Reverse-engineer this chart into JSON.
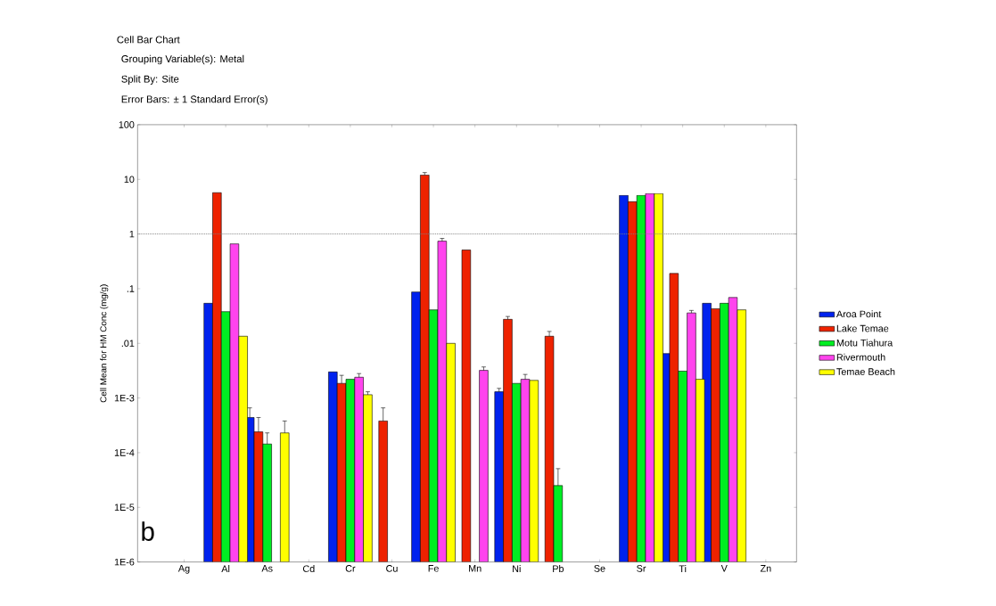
{
  "chart_data": {
    "type": "bar",
    "title": "Cell Bar Chart",
    "annotations": [
      "Grouping Variable(s): Metal",
      "Split By: Site",
      "Error Bars: ± 1 Standard Error(s)",
      "b"
    ],
    "ylabel": "Cell Mean for HM Conc (mg/g)",
    "categories": [
      "Ag",
      "Al",
      "As",
      "Cd",
      "Cr",
      "Cu",
      "Fe",
      "Mn",
      "Ni",
      "Pb",
      "Se",
      "Sr",
      "Ti",
      "V",
      "Zn"
    ],
    "log": true,
    "ylim": [
      1e-06,
      100
    ],
    "yticks": [
      100,
      10,
      1,
      {
        "value": 0.1,
        "label": ".1"
      },
      {
        "value": 0.01,
        "label": ".01"
      },
      {
        "value": 0.001,
        "label": "1E-3"
      },
      {
        "value": 0.0001,
        "label": "1E-4"
      },
      {
        "value": 1e-05,
        "label": "1E-5"
      },
      {
        "value": 1e-06,
        "label": "1E-6"
      }
    ],
    "legend": "right",
    "ref_lines": [
      {
        "axis": "y",
        "value": 1,
        "color": "#808080",
        "line_style": "dotted"
      }
    ],
    "series": [
      {
        "name": "Aroa Point",
        "color": "#0022ee",
        "values": [
          null,
          0.054,
          0.00044,
          null,
          0.003,
          null,
          0.087,
          null,
          0.0013,
          null,
          null,
          5.1,
          0.0065,
          0.054,
          null
        ],
        "errors": [
          null,
          null,
          [
            0.00044,
            0.00066
          ],
          null,
          null,
          null,
          null,
          null,
          [
            0.0013,
            0.0015
          ],
          null,
          null,
          null,
          null,
          null,
          null
        ]
      },
      {
        "name": "Lake Temae",
        "color": "#ee2200",
        "values": [
          null,
          5.7,
          0.00024,
          null,
          0.00185,
          0.00038,
          12,
          0.51,
          0.0275,
          0.0135,
          null,
          3.9,
          0.19,
          0.043,
          null
        ],
        "errors": [
          null,
          null,
          [
            0.00024,
            0.00044
          ],
          null,
          [
            0.00185,
            0.0026
          ],
          [
            0.00038,
            0.00066
          ],
          [
            12,
            13.3
          ],
          null,
          [
            0.0275,
            0.031
          ],
          [
            0.0135,
            0.0165
          ],
          null,
          null,
          null,
          null,
          null
        ]
      },
      {
        "name": "Motu Tiahura",
        "color": "#00ee22",
        "values": [
          null,
          0.038,
          0.000144,
          null,
          0.0022,
          null,
          0.041,
          null,
          0.00185,
          2.5e-05,
          null,
          5.1,
          0.0031,
          0.054,
          null
        ],
        "errors": [
          null,
          null,
          [
            0.000144,
            0.00023
          ],
          null,
          null,
          null,
          null,
          null,
          null,
          [
            2.5e-05,
            5.1e-05
          ],
          null,
          null,
          null,
          null,
          null
        ]
      },
      {
        "name": "Rivermouth",
        "color": "#ff44ee",
        "values": [
          null,
          0.66,
          null,
          null,
          0.0024,
          null,
          0.74,
          0.0032,
          0.0022,
          null,
          null,
          5.5,
          0.036,
          0.069,
          null
        ],
        "errors": [
          null,
          null,
          null,
          null,
          [
            0.0024,
            0.0028
          ],
          null,
          [
            0.74,
            0.83
          ],
          [
            0.0032,
            0.0037
          ],
          [
            0.0022,
            0.0027
          ],
          null,
          null,
          null,
          [
            0.036,
            0.04
          ],
          null,
          null
        ]
      },
      {
        "name": "Temae Beach",
        "color": "#ffff00",
        "values": [
          null,
          0.0135,
          0.00023,
          null,
          0.00115,
          null,
          0.01,
          null,
          0.0021,
          null,
          null,
          5.5,
          0.0022,
          0.041,
          null
        ],
        "errors": [
          null,
          null,
          [
            0.00023,
            0.00038
          ],
          null,
          [
            0.00115,
            0.0013
          ],
          null,
          null,
          null,
          null,
          null,
          null,
          null,
          null,
          null,
          null
        ]
      }
    ]
  }
}
